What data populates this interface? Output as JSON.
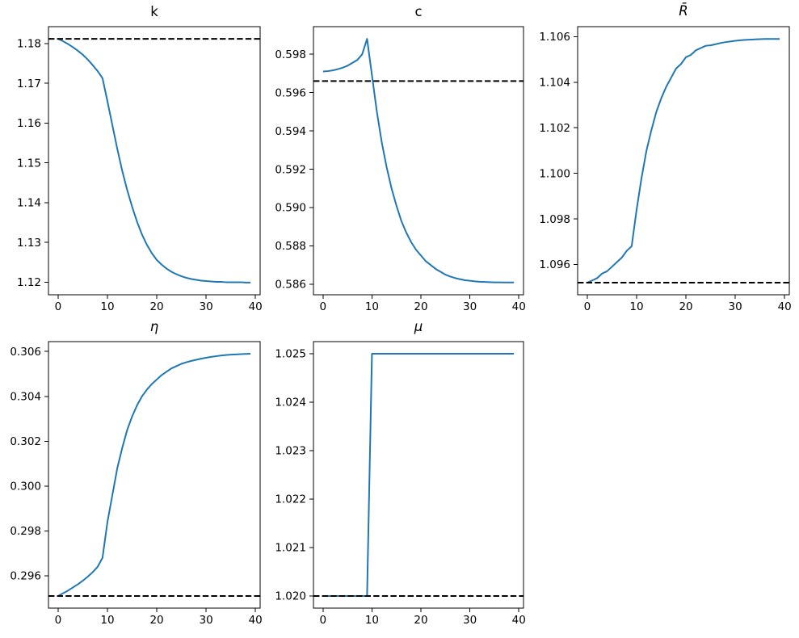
{
  "style": {
    "line_color": "#1f77b4",
    "steady_state_color": "#000000",
    "spine_color": "#000000",
    "background": "#ffffff"
  },
  "x": [
    0,
    1,
    2,
    3,
    4,
    5,
    6,
    7,
    8,
    9,
    10,
    11,
    12,
    13,
    14,
    15,
    16,
    17,
    18,
    19,
    20,
    21,
    22,
    23,
    24,
    25,
    26,
    27,
    28,
    29,
    30,
    31,
    32,
    33,
    34,
    35,
    36,
    37,
    38,
    39
  ],
  "xlim": [
    -1.95,
    40.95
  ],
  "x_ticks": [
    0,
    10,
    20,
    30,
    40
  ],
  "x_tick_labels": [
    "0",
    "10",
    "20",
    "30",
    "40"
  ],
  "chart_data": [
    {
      "id": "k",
      "type": "line",
      "title": "k",
      "title_italic": false,
      "grid": false,
      "values": [
        1.1812,
        1.1806,
        1.1799,
        1.1791,
        1.1782,
        1.1772,
        1.176,
        1.1746,
        1.1731,
        1.1713,
        1.1655,
        1.1595,
        1.1535,
        1.148,
        1.1432,
        1.139,
        1.1352,
        1.132,
        1.1294,
        1.1273,
        1.1256,
        1.1244,
        1.1234,
        1.1226,
        1.122,
        1.1215,
        1.1211,
        1.1208,
        1.1206,
        1.1204,
        1.1203,
        1.1202,
        1.1201,
        1.1201,
        1.12,
        1.12,
        1.12,
        1.12,
        1.1199,
        1.1199
      ],
      "steady_state": 1.1812,
      "steady_state_style": "dashed",
      "y_ticks": [
        1.12,
        1.13,
        1.14,
        1.15,
        1.16,
        1.17,
        1.18
      ],
      "y_tick_labels": [
        "1.12",
        "1.13",
        "1.14",
        "1.15",
        "1.16",
        "1.17",
        "1.18"
      ],
      "ylim": [
        1.11684,
        1.18426
      ]
    },
    {
      "id": "c",
      "type": "line",
      "title": "c",
      "title_italic": false,
      "grid": false,
      "values": [
        0.5971,
        0.59712,
        0.59716,
        0.59722,
        0.5973,
        0.5974,
        0.59755,
        0.5977,
        0.598,
        0.5988,
        0.5969,
        0.595,
        0.5934,
        0.5921,
        0.591,
        0.5901,
        0.5893,
        0.5887,
        0.5882,
        0.5878,
        0.5875,
        0.5872,
        0.587,
        0.5868,
        0.58665,
        0.5865,
        0.5864,
        0.58632,
        0.58626,
        0.58621,
        0.58618,
        0.58615,
        0.58613,
        0.58612,
        0.58611,
        0.5861,
        0.5861,
        0.58609,
        0.58609,
        0.58609
      ],
      "steady_state": 0.5966,
      "steady_state_style": "dashed",
      "y_ticks": [
        0.586,
        0.588,
        0.59,
        0.592,
        0.594,
        0.596,
        0.598
      ],
      "y_tick_labels": [
        "0.586",
        "0.588",
        "0.590",
        "0.592",
        "0.594",
        "0.596",
        "0.598"
      ],
      "ylim": [
        0.58545,
        0.59944
      ]
    },
    {
      "id": "R_bar",
      "type": "line",
      "title": "R̄",
      "title_italic": true,
      "grid": false,
      "values": [
        1.0952,
        1.0953,
        1.0954,
        1.0956,
        1.0957,
        1.0959,
        1.0961,
        1.0963,
        1.0966,
        1.0968,
        1.0984,
        1.0998,
        1.101,
        1.1019,
        1.1027,
        1.1033,
        1.1038,
        1.1042,
        1.1046,
        1.1048,
        1.1051,
        1.1052,
        1.1054,
        1.1055,
        1.1056,
        1.10562,
        1.10567,
        1.10572,
        1.10576,
        1.10579,
        1.10582,
        1.10584,
        1.10586,
        1.10587,
        1.10588,
        1.10589,
        1.1059,
        1.1059,
        1.1059,
        1.1059
      ],
      "steady_state": 1.0952,
      "steady_state_style": "dashed",
      "y_ticks": [
        1.096,
        1.098,
        1.1,
        1.102,
        1.104,
        1.106
      ],
      "y_tick_labels": [
        "1.096",
        "1.098",
        "1.100",
        "1.102",
        "1.104",
        "1.106"
      ],
      "ylim": [
        1.09467,
        1.10644
      ]
    },
    {
      "id": "eta",
      "type": "line",
      "title": "η",
      "title_italic": true,
      "grid": false,
      "values": [
        0.2951,
        0.29522,
        0.29534,
        0.29548,
        0.29562,
        0.29578,
        0.29596,
        0.29616,
        0.2964,
        0.2968,
        0.2984,
        0.2996,
        0.3008,
        0.3017,
        0.3025,
        0.3031,
        0.3036,
        0.304,
        0.3043,
        0.30455,
        0.30475,
        0.30495,
        0.3051,
        0.30525,
        0.30535,
        0.30545,
        0.30552,
        0.30558,
        0.30563,
        0.30568,
        0.30572,
        0.30576,
        0.30579,
        0.30582,
        0.30584,
        0.30586,
        0.30587,
        0.30588,
        0.30589,
        0.3059
      ],
      "steady_state": 0.2951,
      "steady_state_style": "dashed",
      "y_ticks": [
        0.296,
        0.298,
        0.3,
        0.302,
        0.304,
        0.306
      ],
      "y_tick_labels": [
        "0.296",
        "0.298",
        "0.300",
        "0.302",
        "0.304",
        "0.306"
      ],
      "ylim": [
        0.29456,
        0.30644
      ]
    },
    {
      "id": "mu",
      "type": "line",
      "title": "μ",
      "title_italic": true,
      "grid": false,
      "values": [
        1.02,
        1.02,
        1.02,
        1.02,
        1.02,
        1.02,
        1.02,
        1.02,
        1.02,
        1.02,
        1.025,
        1.025,
        1.025,
        1.025,
        1.025,
        1.025,
        1.025,
        1.025,
        1.025,
        1.025,
        1.025,
        1.025,
        1.025,
        1.025,
        1.025,
        1.025,
        1.025,
        1.025,
        1.025,
        1.025,
        1.025,
        1.025,
        1.025,
        1.025,
        1.025,
        1.025,
        1.025,
        1.025,
        1.025,
        1.025
      ],
      "steady_state": 1.02,
      "steady_state_style": "dashed",
      "y_ticks": [
        1.02,
        1.021,
        1.022,
        1.023,
        1.024,
        1.025
      ],
      "y_tick_labels": [
        "1.020",
        "1.021",
        "1.022",
        "1.023",
        "1.024",
        "1.025"
      ],
      "ylim": [
        1.01975,
        1.02525
      ]
    }
  ]
}
